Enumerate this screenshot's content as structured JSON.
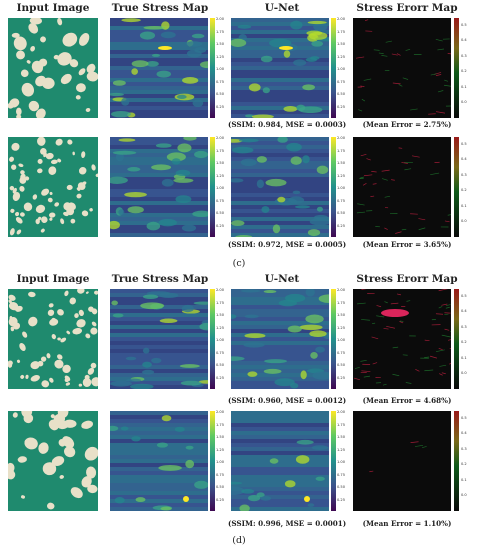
{
  "headers": [
    "Input Image",
    "True Stress Map",
    "U-Net",
    "Stress Erorr Map"
  ],
  "colors": {
    "matrix": "#1f8a6e",
    "inclusion": "#e8e0c8",
    "stress_base": "#3a4f8c",
    "error_base": "#0b0b0b"
  },
  "stress_colorbar_ticks": [
    "2.00",
    "1.75",
    "1.50",
    "1.25",
    "1.00",
    "0.75",
    "0.50",
    "0.25"
  ],
  "rows": [
    {
      "id": "c1",
      "ssim_mse": "(SSIM: 0.984, MSE = 0.0003)",
      "mean_error": "(Mean Error = 2.75%)",
      "error_ticks": [
        "0.5",
        "0.4",
        "0.3",
        "0.2",
        "0.1",
        "0.0"
      ]
    },
    {
      "id": "c2",
      "ssim_mse": "(SSIM: 0.972, MSE = 0.0005)",
      "mean_error": "(Mean Error = 3.65%)",
      "error_ticks": [
        "0.5",
        "0.4",
        "0.3",
        "0.2",
        "0.1",
        "0.0"
      ]
    },
    {
      "id": "d1",
      "ssim_mse": "(SSIM: 0.960, MSE = 0.0012)",
      "mean_error": "(Mean Error = 4.68%)",
      "error_ticks": [
        "0.5",
        "0.4",
        "0.3",
        "0.2",
        "0.1",
        "0.0"
      ]
    },
    {
      "id": "d2",
      "ssim_mse": "(SSIM: 0.996, MSE = 0.0001)",
      "mean_error": "(Mean Error = 1.10%)",
      "error_ticks": [
        "0.5",
        "0.4",
        "0.3",
        "0.2",
        "0.1",
        "0.0"
      ]
    }
  ],
  "subfigure_labels": [
    "(c)",
    "(d)"
  ]
}
